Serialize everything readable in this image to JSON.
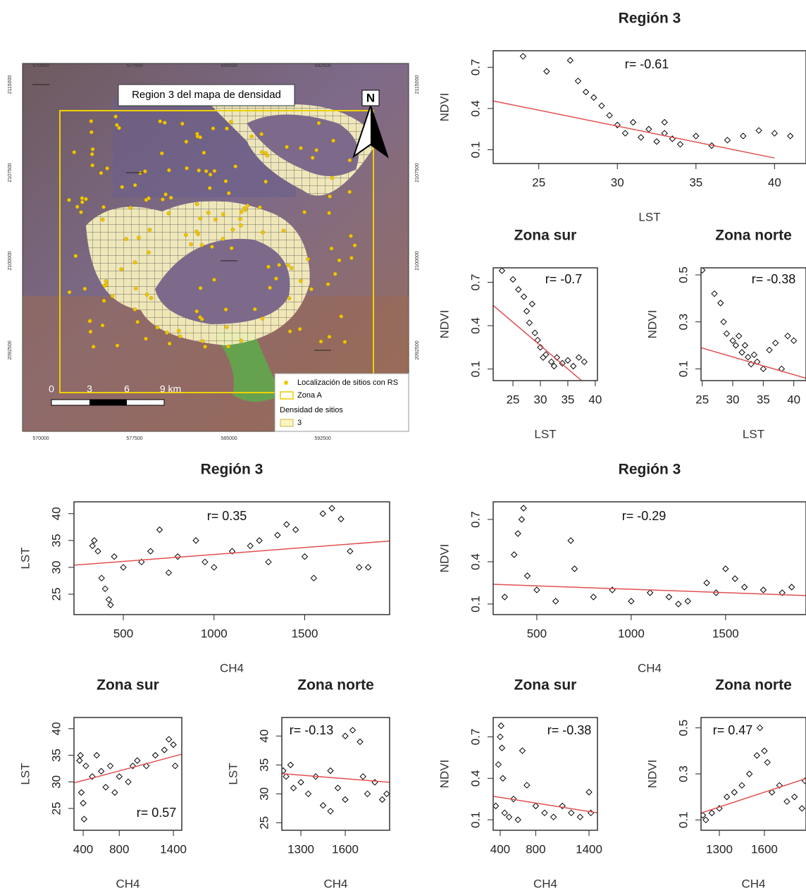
{
  "map": {
    "title": "Region 3 del mapa de densidad",
    "north": "N",
    "x_coords": [
      "570000",
      "577500",
      "585000",
      "592500"
    ],
    "y_coords": [
      "2115000",
      "2107500",
      "2100000",
      "2092500"
    ],
    "scale": [
      "0",
      "3",
      "6",
      "9 km"
    ],
    "legend": {
      "points": "Localización de sitios con RS",
      "zone": "Zona A",
      "heading": "Densidad de sitios",
      "density": "3"
    }
  },
  "chart_data": [
    {
      "type": "scatter",
      "title": "Región 3",
      "x_label": "LST",
      "y_label": "NDVI",
      "annotation": "r= -0.61",
      "xlim": [
        22.1,
        42
      ],
      "ylim": [
        0,
        0.82
      ],
      "xticks": [
        25,
        30,
        35,
        40
      ],
      "yticks": [
        0.1,
        0.4,
        0.7
      ],
      "color": "#000000",
      "x": [
        24,
        25.5,
        27,
        27.5,
        28,
        29,
        29.5,
        30,
        30.5,
        31,
        31.5,
        32,
        32.5,
        33,
        33.5,
        34,
        35,
        36,
        37,
        38,
        39,
        40,
        41,
        28.5,
        33
      ],
      "y": [
        0.78,
        0.67,
        0.75,
        0.6,
        0.52,
        0.42,
        0.35,
        0.28,
        0.22,
        0.3,
        0.19,
        0.25,
        0.16,
        0.22,
        0.18,
        0.14,
        0.2,
        0.13,
        0.17,
        0.2,
        0.24,
        0.22,
        0.2,
        0.48,
        0.3
      ],
      "fit": {
        "color": "#e05050",
        "x": [
          22.1,
          40
        ],
        "y": [
          0.455,
          0.04
        ]
      }
    },
    {
      "type": "scatter",
      "title": "Zona sur",
      "x_label": "LST",
      "y_label": "NDVI",
      "annotation": "r= -0.7",
      "xlim": [
        21.4,
        40.4
      ],
      "ylim": [
        0.02,
        0.8
      ],
      "xticks": [
        25,
        30,
        35,
        40
      ],
      "yticks": [
        0.1,
        0.4,
        0.7
      ],
      "color": "#000000",
      "x": [
        23,
        25,
        26,
        27,
        27.5,
        28,
        29,
        29.5,
        30,
        30.5,
        31,
        32,
        32.5,
        33,
        34,
        35,
        36,
        37,
        38,
        28.5
      ],
      "y": [
        0.78,
        0.72,
        0.65,
        0.6,
        0.5,
        0.42,
        0.35,
        0.3,
        0.25,
        0.18,
        0.2,
        0.15,
        0.12,
        0.18,
        0.14,
        0.16,
        0.12,
        0.18,
        0.15,
        0.55
      ],
      "fit": {
        "color": "#e05050",
        "x": [
          21.4,
          37.5
        ],
        "y": [
          0.54,
          0.02
        ]
      }
    },
    {
      "type": "scatter",
      "title": "Zona norte",
      "x_label": "LST",
      "y_label": "NDVI",
      "annotation": "r= -0.38",
      "xlim": [
        24.8,
        42
      ],
      "ylim": [
        0.05,
        0.53
      ],
      "xticks": [
        25,
        30,
        35,
        40
      ],
      "yticks": [
        0.1,
        0.3,
        0.5
      ],
      "color": "#000000",
      "x": [
        25,
        27,
        28,
        28.5,
        29,
        30,
        30.5,
        31,
        31.5,
        32,
        32.5,
        33,
        33.5,
        34,
        35,
        36,
        37,
        38,
        39,
        40
      ],
      "y": [
        0.52,
        0.42,
        0.38,
        0.3,
        0.25,
        0.22,
        0.2,
        0.24,
        0.17,
        0.2,
        0.15,
        0.12,
        0.16,
        0.13,
        0.1,
        0.18,
        0.21,
        0.1,
        0.24,
        0.22
      ],
      "fit": {
        "color": "#e05050",
        "x": [
          24.8,
          42
        ],
        "y": [
          0.19,
          0.06
        ]
      }
    },
    {
      "type": "scatter",
      "title": "Región 3",
      "x_label": "CH4",
      "y_label": "LST",
      "annotation": "r= 0.35",
      "xlim": [
        228,
        1968
      ],
      "ylim": [
        21.2,
        42.2
      ],
      "xticks": [
        500,
        1000,
        1500
      ],
      "yticks": [
        25,
        30,
        35,
        40
      ],
      "color": "#000000",
      "x": [
        330,
        340,
        360,
        380,
        400,
        420,
        430,
        450,
        500,
        600,
        650,
        700,
        750,
        800,
        900,
        950,
        1000,
        1100,
        1200,
        1250,
        1300,
        1350,
        1400,
        1450,
        1500,
        1550,
        1600,
        1650,
        1700,
        1750,
        1800,
        1850
      ],
      "y": [
        34,
        35,
        33,
        28,
        26,
        24,
        23,
        32,
        30,
        31,
        33,
        37,
        29,
        32,
        35,
        31,
        30,
        33,
        34,
        35,
        31,
        36,
        38,
        37,
        32,
        28,
        40,
        41,
        39,
        33,
        30,
        30
      ],
      "fit": {
        "color": "#e05050",
        "x": [
          228,
          1968
        ],
        "y": [
          30.4,
          34.9
        ]
      }
    },
    {
      "type": "scatter",
      "title": "Zona sur",
      "x_label": "CH4",
      "y_label": "LST",
      "annotation": "r= 0.57",
      "xlim": [
        298,
        1493
      ],
      "ylim": [
        20.9,
        42.1
      ],
      "xticks": [
        400,
        800,
        1400
      ],
      "yticks": [
        25,
        30,
        35,
        40
      ],
      "color": "#000000",
      "x": [
        360,
        370,
        380,
        400,
        410,
        430,
        500,
        550,
        600,
        650,
        700,
        750,
        800,
        900,
        950,
        1000,
        1100,
        1200,
        1300,
        1350,
        1400,
        1420
      ],
      "y": [
        34,
        35,
        28,
        26,
        23,
        33,
        31,
        35,
        32,
        29,
        33,
        28,
        31,
        30,
        33,
        34,
        33,
        35,
        36,
        38,
        37,
        33
      ],
      "fit": {
        "color": "#e05050",
        "x": [
          298,
          1493
        ],
        "y": [
          29.8,
          35.2
        ]
      }
    },
    {
      "type": "scatter",
      "title": "Zona norte",
      "x_label": "CH4",
      "y_label": "LST",
      "annotation": "r= -0.13",
      "xlim": [
        1171,
        1900
      ],
      "ylim": [
        23.7,
        43.2
      ],
      "xticks": [
        1300,
        1600
      ],
      "yticks": [
        25,
        30,
        35,
        40
      ],
      "color": "#000000",
      "x": [
        1180,
        1200,
        1230,
        1250,
        1300,
        1350,
        1400,
        1450,
        1500,
        1550,
        1600,
        1650,
        1700,
        1720,
        1750,
        1800,
        1850,
        1880,
        1500,
        1600
      ],
      "y": [
        34,
        33,
        35,
        31,
        32,
        30,
        33,
        28,
        27,
        31,
        40,
        41,
        39,
        33,
        30,
        32,
        29,
        30,
        34,
        29
      ],
      "fit": {
        "color": "#e05050",
        "x": [
          1171,
          1900
        ],
        "y": [
          33.5,
          32.0
        ]
      }
    },
    {
      "type": "scatter",
      "title": "Región 3",
      "x_label": "CH4",
      "y_label": "NDVI",
      "annotation": "r= -0.29",
      "xlim": [
        269,
        1926
      ],
      "ylim": [
        0.025,
        0.825
      ],
      "xticks": [
        500,
        1000,
        1500
      ],
      "yticks": [
        0.1,
        0.4,
        0.7
      ],
      "color": "#000000",
      "x": [
        330,
        380,
        400,
        420,
        430,
        450,
        500,
        600,
        680,
        700,
        800,
        900,
        1000,
        1100,
        1200,
        1250,
        1300,
        1400,
        1450,
        1500,
        1550,
        1600,
        1700,
        1800,
        1850
      ],
      "y": [
        0.15,
        0.45,
        0.6,
        0.7,
        0.78,
        0.3,
        0.2,
        0.12,
        0.55,
        0.35,
        0.15,
        0.2,
        0.12,
        0.18,
        0.15,
        0.1,
        0.12,
        0.25,
        0.18,
        0.35,
        0.28,
        0.22,
        0.2,
        0.18,
        0.22
      ],
      "fit": {
        "color": "#e05050",
        "x": [
          269,
          1926
        ],
        "y": [
          0.24,
          0.16
        ]
      }
    },
    {
      "type": "scatter",
      "title": "Zona sur",
      "x_label": "CH4",
      "y_label": "NDVI",
      "annotation": "r= -0.38",
      "xlim": [
        321,
        1495
      ],
      "ylim": [
        0.024,
        0.84
      ],
      "xticks": [
        400,
        800,
        1400
      ],
      "yticks": [
        0.1,
        0.4,
        0.7
      ],
      "color": "#000000",
      "x": [
        350,
        380,
        400,
        410,
        420,
        430,
        450,
        500,
        550,
        600,
        650,
        700,
        800,
        900,
        1000,
        1100,
        1200,
        1300,
        1400,
        1420
      ],
      "y": [
        0.2,
        0.5,
        0.7,
        0.78,
        0.62,
        0.4,
        0.15,
        0.12,
        0.25,
        0.1,
        0.6,
        0.35,
        0.2,
        0.15,
        0.12,
        0.2,
        0.15,
        0.12,
        0.3,
        0.15
      ],
      "fit": {
        "color": "#e05050",
        "x": [
          321,
          1495
        ],
        "y": [
          0.27,
          0.15
        ]
      }
    },
    {
      "type": "scatter",
      "title": "Zona norte",
      "x_label": "CH4",
      "y_label": "NDVI",
      "annotation": "r= 0.47",
      "xlim": [
        1178,
        1877
      ],
      "ylim": [
        0.055,
        0.545
      ],
      "xticks": [
        1300,
        1600
      ],
      "yticks": [
        0.1,
        0.3,
        0.5
      ],
      "color": "#000000",
      "x": [
        1190,
        1210,
        1250,
        1300,
        1350,
        1400,
        1450,
        1500,
        1550,
        1570,
        1600,
        1620,
        1650,
        1700,
        1750,
        1800,
        1850,
        1870
      ],
      "y": [
        0.12,
        0.1,
        0.13,
        0.15,
        0.2,
        0.22,
        0.25,
        0.3,
        0.38,
        0.5,
        0.4,
        0.35,
        0.22,
        0.25,
        0.18,
        0.2,
        0.15,
        0.27
      ],
      "fit": {
        "color": "#e05050",
        "x": [
          1178,
          1877
        ],
        "y": [
          0.13,
          0.28
        ]
      }
    }
  ]
}
